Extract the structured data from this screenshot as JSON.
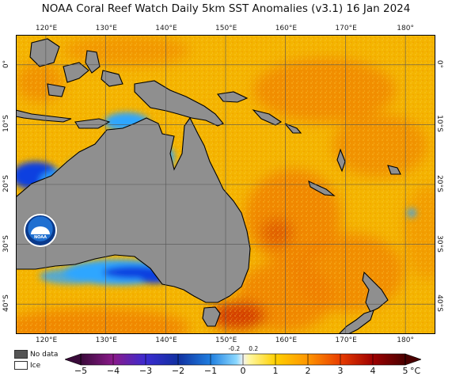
{
  "title": "NOAA Coral Reef Watch Daily 5km SST Anomalies  (v3.1)    16 Jan 2024",
  "map": {
    "lon_range": [
      115,
      185
    ],
    "lat_range": [
      -45,
      5
    ],
    "lon_ticks": [
      "120°E",
      "130°E",
      "140°E",
      "150°E",
      "160°E",
      "170°E",
      "180°"
    ],
    "lon_tick_values": [
      120,
      130,
      140,
      150,
      160,
      170,
      180
    ],
    "lat_ticks": [
      "0°",
      "10°S",
      "20°S",
      "30°S",
      "40°S"
    ],
    "lat_tick_values": [
      0,
      -10,
      -20,
      -30,
      -40
    ],
    "colors": {
      "land": "#8f8f8f",
      "ocean_base": "#f4b400",
      "ocean_warm": "#ef7d00",
      "ocean_hot": "#d23a00",
      "ocean_cool": "#2ea6ff",
      "ocean_cold": "#0b3fe0",
      "near_zero": "#e6e6e6",
      "coast": "#000000",
      "grid": "#555555"
    }
  },
  "logo": {
    "text": "NOAA"
  },
  "legend": {
    "no_data": "No data",
    "ice": "Ice",
    "no_data_color": "#555555",
    "ice_color": "#ffffff"
  },
  "colorbar": {
    "unit": "°C",
    "ticks": [
      "−5",
      "−4",
      "−3",
      "−2",
      "−1",
      "0",
      "1",
      "2",
      "3",
      "4",
      "5"
    ],
    "tick_values": [
      -5,
      -4,
      -3,
      -2,
      -1,
      0,
      1,
      2,
      3,
      4,
      5
    ],
    "small_labels": [
      "-0.2",
      "0.2"
    ],
    "small_values": [
      -0.2,
      0.2
    ],
    "stops": [
      {
        "v": -5,
        "c": "#3a0a3a"
      },
      {
        "v": -4,
        "c": "#8a1a8a"
      },
      {
        "v": -3,
        "c": "#3b2bd0"
      },
      {
        "v": -2,
        "c": "#1030a0"
      },
      {
        "v": -1,
        "c": "#1f7fe0"
      },
      {
        "v": -0.2,
        "c": "#8ad8ff"
      },
      {
        "v": 0,
        "c": "#f2f2f2"
      },
      {
        "v": 0.2,
        "c": "#fff7a0"
      },
      {
        "v": 1,
        "c": "#ffd000"
      },
      {
        "v": 2,
        "c": "#ff9500"
      },
      {
        "v": 3,
        "c": "#e83c00"
      },
      {
        "v": 4,
        "c": "#9e0000"
      },
      {
        "v": 5,
        "c": "#4a0000"
      }
    ]
  }
}
